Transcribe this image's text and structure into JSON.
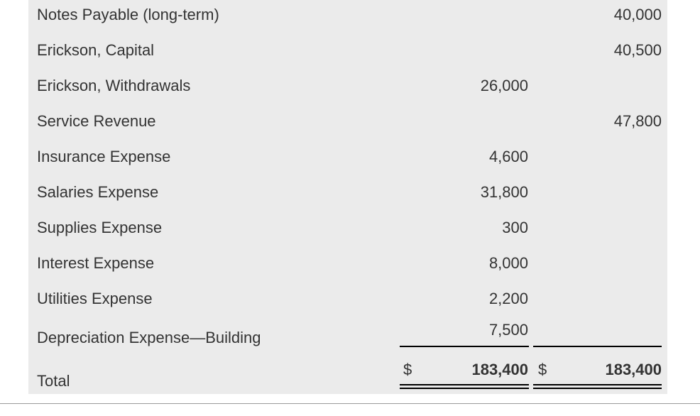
{
  "rows": [
    {
      "account": "Notes Payable (long-term)",
      "debit": "",
      "credit": "40,000"
    },
    {
      "account": "Erickson, Capital",
      "debit": "",
      "credit": "40,500"
    },
    {
      "account": "Erickson, Withdrawals",
      "debit": "26,000",
      "credit": ""
    },
    {
      "account": "Service Revenue",
      "debit": "",
      "credit": "47,800"
    },
    {
      "account": "Insurance Expense",
      "debit": "4,600",
      "credit": ""
    },
    {
      "account": "Salaries Expense",
      "debit": "31,800",
      "credit": ""
    },
    {
      "account": "Supplies Expense",
      "debit": "300",
      "credit": ""
    },
    {
      "account": "Interest Expense",
      "debit": "8,000",
      "credit": ""
    },
    {
      "account": "Utilities Expense",
      "debit": "2,200",
      "credit": ""
    },
    {
      "account": "Depreciation Expense—Building",
      "debit": "7,500",
      "credit": ""
    }
  ],
  "total": {
    "label": "Total",
    "currency_symbol": "$",
    "debit": "183,400",
    "credit": "183,400"
  }
}
